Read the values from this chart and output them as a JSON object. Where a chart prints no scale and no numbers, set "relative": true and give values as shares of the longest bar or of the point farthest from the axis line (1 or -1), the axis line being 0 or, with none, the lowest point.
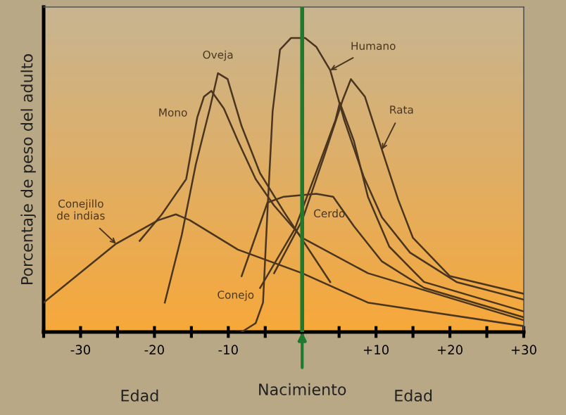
{
  "chart_data": {
    "type": "line",
    "relative": true,
    "ylabel": "Porcentaje de peso del adulto",
    "xlim": [
      -35,
      30
    ],
    "xticks": [
      {
        "value": -35,
        "label": null
      },
      -30,
      {
        "value": -25,
        "label": null
      },
      -20,
      {
        "value": -15,
        "label": null
      },
      -10,
      {
        "value": -5,
        "label": null
      },
      {
        "value": 0,
        "label": null
      },
      {
        "value": 5,
        "label": null
      },
      {
        "value": 10,
        "label": "+10"
      },
      {
        "value": 15,
        "label": null
      },
      {
        "value": 20,
        "label": "+20"
      },
      {
        "value": 25,
        "label": null
      },
      {
        "value": 30,
        "label": "+30"
      }
    ],
    "tick_labels": "x",
    "grid": false,
    "legend": false,
    "marker": "none",
    "line_style": "solid",
    "series": [
      {
        "name": "Humano",
        "color": "#4a3520",
        "x": [
          -8.2,
          -6.3,
          -5.3,
          -4.7,
          -4.0,
          -3.0,
          -1.5,
          0.4,
          1.9,
          3.8,
          5.7,
          8.3,
          10.8,
          14.6,
          20.9,
          30
        ],
        "values": [
          0,
          0.03,
          0.1,
          0.41,
          0.75,
          0.96,
          1.0,
          1.0,
          0.97,
          0.89,
          0.72,
          0.53,
          0.39,
          0.27,
          0.17,
          0.11
        ]
      },
      {
        "name": "Rata",
        "color": "#4a3520",
        "x": [
          -3.8,
          0,
          3,
          5.5,
          6.6,
          8.5,
          10.8,
          13,
          15,
          20,
          30
        ],
        "values": [
          0.2,
          0.38,
          0.6,
          0.79,
          0.86,
          0.8,
          0.62,
          0.45,
          0.32,
          0.19,
          0.13
        ]
      },
      {
        "name": "Conejo",
        "color": "#4a3520",
        "x": [
          -5.7,
          -1,
          2,
          4.5,
          5.1,
          7,
          8.9,
          11.8,
          16.5,
          30
        ],
        "values": [
          0.15,
          0.35,
          0.55,
          0.72,
          0.78,
          0.65,
          0.46,
          0.29,
          0.17,
          0.07
        ]
      },
      {
        "name": "Cerdo",
        "color": "#4a3520",
        "x": [
          -8.2,
          -4.7,
          -2.5,
          1.9,
          4.2,
          7.0,
          10.8,
          16.5,
          30
        ],
        "values": [
          0.19,
          0.44,
          0.46,
          0.47,
          0.46,
          0.36,
          0.24,
          0.15,
          0.05
        ]
      },
      {
        "name": "Mono",
        "color": "#4a3520",
        "x": [
          -22,
          -19,
          -15.7,
          -14.2,
          -13.3,
          -12.3,
          -10.6,
          -8.7,
          -6.3,
          -3.8,
          0,
          8.9,
          30
        ],
        "values": [
          0.31,
          0.4,
          0.52,
          0.73,
          0.8,
          0.82,
          0.76,
          0.65,
          0.52,
          0.43,
          0.32,
          0.2,
          0.04
        ]
      },
      {
        "name": "Oveja",
        "color": "#4a3520",
        "x": [
          -18.6,
          -16.3,
          -14.4,
          -12.5,
          -11.4,
          -10.1,
          -8.2,
          -5.7,
          -2.5,
          3.8
        ],
        "values": [
          0.1,
          0.33,
          0.57,
          0.76,
          0.88,
          0.86,
          0.7,
          0.54,
          0.41,
          0.17
        ]
      },
      {
        "name": "Conejillo\nde indias",
        "color": "#4a3520",
        "x": [
          -35,
          -25.2,
          -19.5,
          -17.1,
          -15.2,
          -8.7,
          0,
          8.9,
          30
        ],
        "values": [
          0.1,
          0.3,
          0.38,
          0.4,
          0.38,
          0.28,
          0.2,
          0.1,
          0.02
        ]
      }
    ],
    "ref_lines": [
      {
        "axis": "x",
        "value": 0,
        "label": "Nacimiento",
        "color": "#1e7a2e",
        "line_style": "solid"
      }
    ],
    "annotations": [
      "Edad",
      "Edad"
    ]
  }
}
